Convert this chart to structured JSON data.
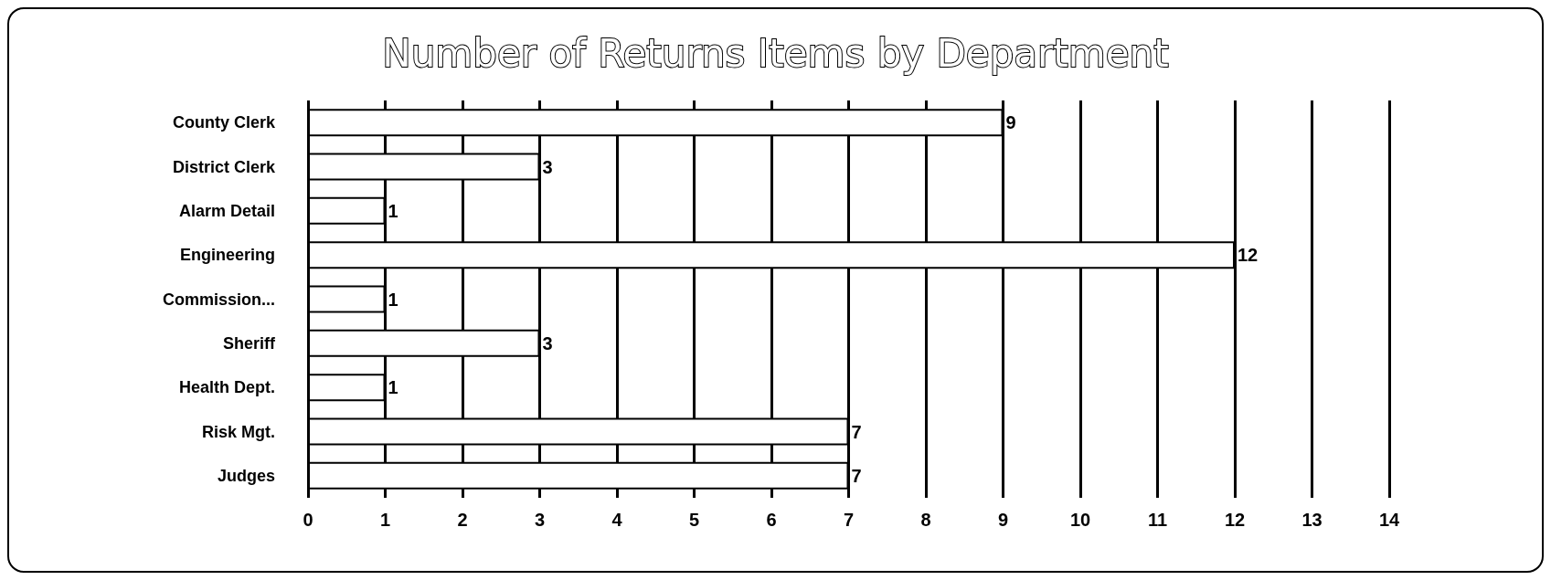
{
  "chart_data": {
    "type": "bar",
    "orientation": "horizontal",
    "title": "Number of Returns Items by Department",
    "categories": [
      "County Clerk",
      "District Clerk",
      "Alarm Detail",
      "Engineering",
      "Commission...",
      "Sheriff",
      "Health Dept.",
      "Risk Mgt.",
      "Judges"
    ],
    "values": [
      9,
      3,
      1,
      12,
      1,
      3,
      1,
      7,
      7
    ],
    "color": "#ffffff",
    "xlim": [
      0,
      14
    ],
    "xticks": [
      0,
      1,
      2,
      3,
      4,
      5,
      6,
      7,
      8,
      9,
      10,
      11,
      12,
      13,
      14
    ],
    "grid": "x",
    "data_labels": true
  }
}
